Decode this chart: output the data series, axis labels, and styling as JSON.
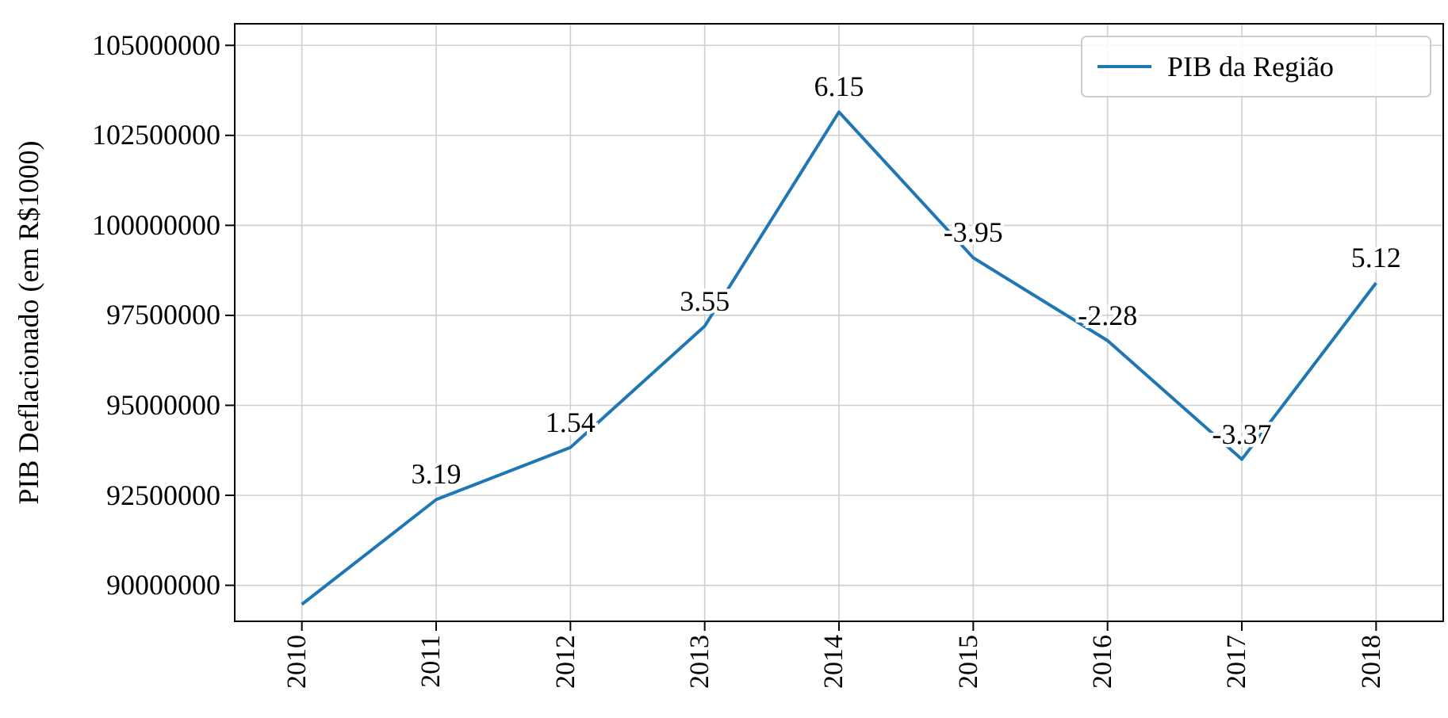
{
  "chart_data": {
    "type": "line",
    "ylabel": "PIB Deflacionado (em R$1000)",
    "categories": [
      "2010",
      "2011",
      "2012",
      "2013",
      "2014",
      "2015",
      "2016",
      "2017",
      "2018"
    ],
    "series": [
      {
        "name": "PIB da Região",
        "color": "#1f77b4",
        "values": [
          89470000,
          92380000,
          93830000,
          97200000,
          103150000,
          99100000,
          96800000,
          93500000,
          98400000
        ]
      }
    ],
    "ylim": [
      89000000,
      105600000
    ],
    "yticks": [
      90000000,
      92500000,
      95000000,
      97500000,
      100000000,
      102500000,
      105000000
    ],
    "annotations": [
      {
        "text": "3.19",
        "x": "2011",
        "y": 92380000
      },
      {
        "text": "1.54",
        "x": "2012",
        "y": 93830000
      },
      {
        "text": "3.55",
        "x": "2013",
        "y": 97200000
      },
      {
        "text": "6.15",
        "x": "2014",
        "y": 103150000
      },
      {
        "text": "-3.95",
        "x": "2015",
        "y": 99100000
      },
      {
        "text": "-2.28",
        "x": "2016",
        "y": 96800000
      },
      {
        "text": "-3.37",
        "x": "2017",
        "y": 93500000
      },
      {
        "text": "5.12",
        "x": "2018",
        "y": 98400000
      }
    ],
    "grid": true,
    "legend": "top right",
    "marker": "none",
    "line_style": "solid"
  }
}
